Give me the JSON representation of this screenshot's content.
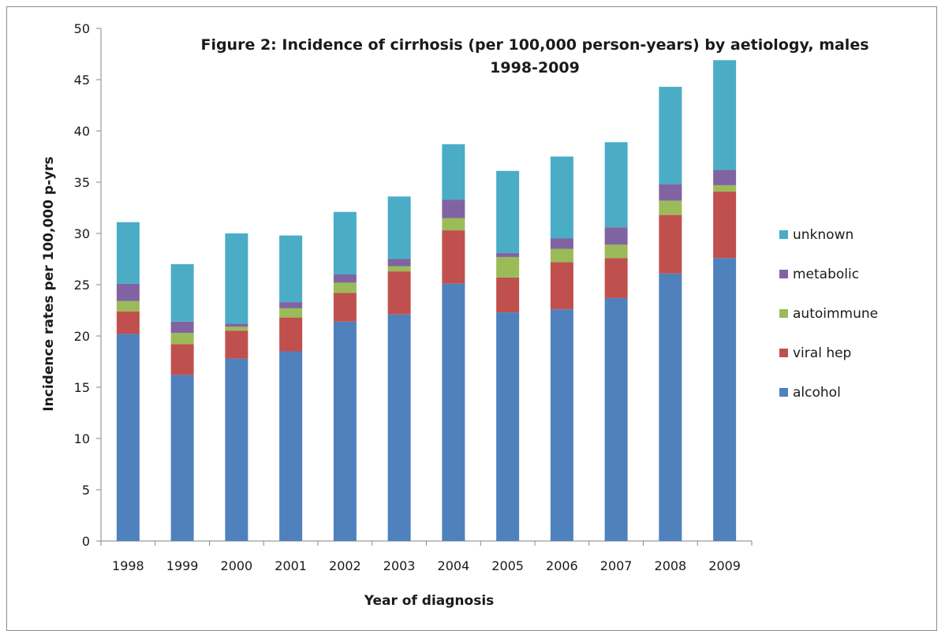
{
  "chart_data": {
    "type": "bar",
    "stacked": true,
    "title": "Figure 2: Incidence of cirrhosis (per 100,000  person-years) by aetiology, males",
    "subtitle": "1998-2009",
    "xlabel": "Year of diagnosis",
    "ylabel": "Incidence rates per 100,000 p-yrs",
    "ylim": [
      0,
      50
    ],
    "yticks": [
      "0",
      "5",
      "10",
      "15",
      "20",
      "25",
      "30",
      "35",
      "40",
      "45",
      "50"
    ],
    "grid": false,
    "legend_position": "right",
    "categories": [
      "1998",
      "1999",
      "2000",
      "2001",
      "2002",
      "2003",
      "2004",
      "2005",
      "2006",
      "2007",
      "2008",
      "2009"
    ],
    "series": [
      {
        "name": "alcohol",
        "color": "#4f81bd",
        "values": [
          20.2,
          16.2,
          17.8,
          18.5,
          21.4,
          22.1,
          25.1,
          22.3,
          22.6,
          23.7,
          26.1,
          27.6
        ]
      },
      {
        "name": "viral hep",
        "color": "#c0504d",
        "values": [
          2.2,
          3.0,
          2.7,
          3.3,
          2.8,
          4.2,
          5.2,
          3.4,
          4.6,
          3.9,
          5.7,
          6.5
        ]
      },
      {
        "name": "autoimmune",
        "color": "#9bbb59",
        "values": [
          1.0,
          1.1,
          0.4,
          0.9,
          1.0,
          0.5,
          1.2,
          2.0,
          1.3,
          1.3,
          1.4,
          0.6
        ]
      },
      {
        "name": "metabolic",
        "color": "#8064a2",
        "values": [
          1.7,
          1.1,
          0.3,
          0.6,
          0.8,
          0.7,
          1.8,
          0.4,
          1.0,
          1.7,
          1.6,
          1.5
        ]
      },
      {
        "name": "unknown",
        "color": "#4bacc6",
        "values": [
          6.0,
          5.6,
          8.8,
          6.5,
          6.1,
          6.1,
          5.4,
          8.0,
          8.0,
          8.3,
          9.5,
          10.7
        ]
      }
    ]
  }
}
